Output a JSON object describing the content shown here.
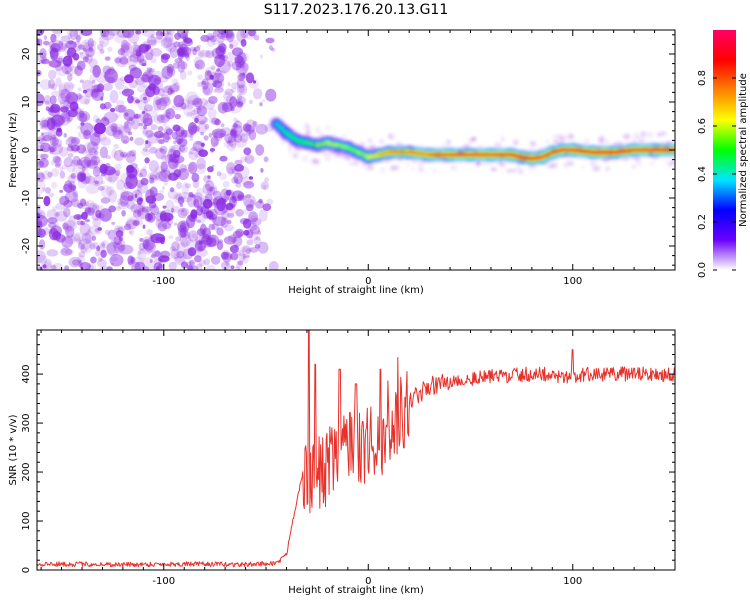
{
  "title": "S117.2023.176.20.13.G11",
  "colors": {
    "snr_line": "#e8312a",
    "spectrogram_noise": "#8a2be2",
    "axis": "#000000"
  },
  "chart_data": [
    {
      "type": "heatmap",
      "name": "spectrogram",
      "xlabel": "Height of straight line (km)",
      "ylabel": "Frequency (Hz)",
      "xlim": [
        -162,
        150
      ],
      "ylim": [
        -25,
        25
      ],
      "xticks": [
        -100,
        0,
        100
      ],
      "xtick_labels": [
        "-100",
        "0",
        "100"
      ],
      "yticks": [
        -20,
        -10,
        0,
        10,
        20
      ],
      "ytick_labels": [
        "-20",
        "-10",
        "0",
        "10",
        "20"
      ],
      "colorbar": {
        "label": "Normalized spectral amplitude",
        "range": [
          0,
          1
        ],
        "ticks": [
          0,
          0.2,
          0.4,
          0.6,
          0.8
        ],
        "tick_labels": [
          "0.0",
          "0.2",
          "0.4",
          "0.6",
          "0.8"
        ],
        "colormap": [
          "#ffffff",
          "#6a00ff",
          "#0000ff",
          "#00e5ff",
          "#00ff00",
          "#ffff00",
          "#ff8000",
          "#ff0000",
          "#ff0066"
        ]
      },
      "noise_region_x": [
        -162,
        -45
      ],
      "signal_track": {
        "x": [
          -45,
          -40,
          -35,
          -30,
          -25,
          -20,
          -15,
          -10,
          -5,
          0,
          5,
          10,
          20,
          30,
          40,
          50,
          60,
          70,
          75,
          80,
          85,
          90,
          95,
          100,
          110,
          120,
          130,
          140,
          150
        ],
        "y": [
          5.5,
          3.5,
          2.0,
          1.5,
          1.0,
          1.5,
          1.0,
          0.5,
          -0.5,
          -1.5,
          -1.0,
          -0.5,
          -0.5,
          -1.0,
          -1.0,
          -1.0,
          -1.0,
          -1.0,
          -1.5,
          -1.8,
          -1.5,
          -0.5,
          0.0,
          0.0,
          -0.5,
          -0.5,
          0.0,
          0.0,
          0.0
        ],
        "amplitude": [
          0.4,
          0.45,
          0.5,
          0.5,
          0.55,
          0.6,
          0.6,
          0.55,
          0.55,
          0.6,
          0.7,
          0.75,
          0.75,
          0.8,
          0.85,
          0.85,
          0.85,
          0.85,
          0.9,
          0.9,
          0.85,
          0.85,
          0.85,
          0.85,
          0.9,
          0.9,
          0.85,
          0.85,
          0.9
        ]
      }
    },
    {
      "type": "line",
      "name": "snr",
      "xlabel": "Height of straight line (km)",
      "ylabel": "SNR (10 * v/v)",
      "xlim": [
        -162,
        150
      ],
      "ylim": [
        0,
        490
      ],
      "xticks": [
        -100,
        0,
        100
      ],
      "xtick_labels": [
        "-100",
        "0",
        "100"
      ],
      "yticks": [
        0,
        100,
        200,
        300,
        400
      ],
      "ytick_labels": [
        "0",
        "100",
        "200",
        "300",
        "400"
      ],
      "envelope": {
        "x": [
          -162,
          -140,
          -120,
          -100,
          -80,
          -60,
          -45,
          -40,
          -38,
          -35,
          -32,
          -30,
          -28,
          -25,
          -20,
          -15,
          -10,
          -5,
          0,
          5,
          10,
          15,
          20,
          25,
          30,
          40,
          50,
          60,
          70,
          80,
          90,
          95,
          100,
          105,
          110,
          120,
          130,
          140,
          150
        ],
        "y": [
          12,
          12,
          11,
          12,
          12,
          11,
          14,
          30,
          80,
          140,
          200,
          170,
          180,
          190,
          210,
          230,
          240,
          250,
          255,
          260,
          280,
          310,
          340,
          360,
          375,
          385,
          390,
          395,
          398,
          400,
          400,
          395,
          395,
          398,
          400,
          400,
          400,
          400,
          400
        ]
      },
      "peaks": {
        "x": [
          -29,
          -26,
          -14,
          -6,
          6,
          100
        ],
        "y": [
          490,
          420,
          410,
          380,
          410,
          450
        ]
      },
      "noise_amplitude": 10
    }
  ]
}
